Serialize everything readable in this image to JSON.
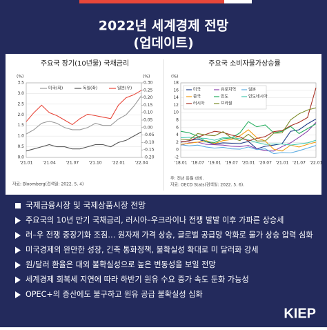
{
  "header": {
    "title": "2022년 세계경제 전망",
    "subtitle": "(업데이트)"
  },
  "chart_data": [
    {
      "type": "line",
      "title": "주요국 장기(10년물) 국채금리",
      "y_label": "(%)",
      "y2_label": "(%)",
      "categories": [
        "'21.01",
        null,
        null,
        "'21.04",
        null,
        null,
        "'21.07",
        null,
        null,
        "'21.10",
        null,
        null,
        "'22.01",
        null,
        null,
        "'22.04"
      ],
      "series": [
        {
          "name": "미국(좌)",
          "color": "#9a9a9a",
          "values": [
            1.1,
            1.3,
            1.6,
            1.7,
            1.6,
            1.4,
            1.3,
            1.3,
            1.4,
            1.6,
            1.5,
            1.5,
            1.8,
            2.0,
            2.4,
            2.9
          ]
        },
        {
          "name": "독일(좌)",
          "color": "#555555",
          "values": [
            0.3,
            0.4,
            0.5,
            0.6,
            0.5,
            0.5,
            0.4,
            0.4,
            0.5,
            0.6,
            0.6,
            0.5,
            0.7,
            0.8,
            1.0,
            1.2
          ]
        },
        {
          "name": "일본(우)",
          "color": "#e8473a",
          "axis": "y2",
          "values": [
            0.04,
            0.1,
            0.15,
            0.1,
            0.08,
            0.05,
            0.02,
            0.06,
            0.09,
            0.08,
            0.07,
            0.06,
            0.15,
            0.2,
            0.22,
            0.25
          ]
        }
      ],
      "ylim": [
        0,
        3.5
      ],
      "yticks": [
        {
          "value": 0,
          "label": "0.0"
        },
        0.5,
        {
          "value": 1,
          "label": "1.0"
        },
        1.5,
        {
          "value": 2,
          "label": "2.0"
        },
        2.5,
        {
          "value": 3,
          "label": "3.0"
        },
        3.5
      ],
      "y2lim": [
        -0.2,
        0.3
      ],
      "y2ticks": [
        {
          "value": -0.2,
          "label": "-0.20"
        },
        -0.15,
        {
          "value": -0.1,
          "label": "-0.10"
        },
        -0.05,
        {
          "value": 0,
          "label": "0.00"
        },
        0.05,
        {
          "value": 0.1,
          "label": "0.10"
        },
        0.15,
        {
          "value": 0.2,
          "label": "0.20"
        },
        0.25,
        {
          "value": 0.3,
          "label": "0.30"
        }
      ],
      "grid": true,
      "legend": "top",
      "notes": [
        "자료: Bloomberg(검색일: 2022. 5. 4)"
      ]
    },
    {
      "type": "line",
      "title": "주요국 소비자물가상승률",
      "y_label": "(%)",
      "categories": [
        "'18.01",
        null,
        "'18.07",
        null,
        "'19.01",
        null,
        "'19.07",
        null,
        "'20.01",
        null,
        "'20.07",
        null,
        "'21.01",
        null,
        "'21.07",
        null,
        "'22.01"
      ],
      "series": [
        {
          "name": "미국",
          "color": "#1f3c88",
          "values": [
            2.1,
            2.5,
            2.9,
            2.2,
            1.6,
            1.9,
            1.8,
            1.7,
            2.3,
            0.3,
            1.0,
            1.3,
            1.7,
            5.0,
            5.4,
            7.0,
            8.3
          ]
        },
        {
          "name": "유로지역",
          "color": "#8e44ad",
          "values": [
            1.3,
            1.9,
            2.1,
            1.5,
            1.4,
            1.3,
            1.0,
            0.9,
            1.2,
            0.3,
            -0.2,
            -0.3,
            0.9,
            1.9,
            3.4,
            5.0,
            7.4
          ]
        },
        {
          "name": "일본",
          "color": "#5dade2",
          "values": [
            1.4,
            1.1,
            1.3,
            0.8,
            0.5,
            0.7,
            0.3,
            0.2,
            0.8,
            0.1,
            0.3,
            -1.0,
            -0.7,
            -0.8,
            -0.2,
            0.5,
            1.2
          ]
        },
        {
          "name": "중국",
          "color": "#f39c12",
          "values": [
            1.5,
            1.8,
            2.1,
            2.5,
            1.7,
            2.5,
            2.8,
            3.8,
            5.4,
            3.3,
            2.4,
            0.2,
            -0.3,
            1.3,
            0.8,
            1.5,
            2.1
          ]
        },
        {
          "name": "인도",
          "color": "#27ae60",
          "values": [
            5.0,
            4.6,
            3.7,
            2.2,
            2.0,
            3.0,
            3.2,
            4.6,
            7.6,
            6.2,
            6.7,
            4.6,
            5.0,
            6.3,
            4.4,
            5.7,
            7.0
          ]
        },
        {
          "name": "인도네시아",
          "color": "#48c9b0",
          "values": [
            3.3,
            3.4,
            3.2,
            3.1,
            2.6,
            3.3,
            3.3,
            3.0,
            2.7,
            2.0,
            1.5,
            1.6,
            1.6,
            1.3,
            1.6,
            1.9,
            2.6
          ]
        },
        {
          "name": "러시아",
          "color": "#a93226",
          "values": [
            2.2,
            2.4,
            3.4,
            4.2,
            5.0,
            4.7,
            4.0,
            3.5,
            2.4,
            3.1,
            3.6,
            4.9,
            5.2,
            6.5,
            7.4,
            8.7,
            16.7
          ]
        },
        {
          "name": "브라질",
          "color": "#7d8c2a",
          "values": [
            2.9,
            2.7,
            4.4,
            4.0,
            3.8,
            4.9,
            3.2,
            2.5,
            4.2,
            2.4,
            2.4,
            4.5,
            4.6,
            8.1,
            9.7,
            10.7,
            11.3
          ]
        }
      ],
      "ylim": [
        -2,
        18
      ],
      "yticks": [
        -2,
        0,
        2,
        4,
        6,
        8,
        10,
        12,
        14,
        16,
        18
      ],
      "grid": true,
      "legend": "top-left",
      "notes": [
        "주: 전년 동월 대비.",
        "자료: OECD Stats(검색일: 2022. 5. 6)."
      ]
    }
  ],
  "bullets": [
    "국제금융시장 및 국제상품시장 전망",
    "주요국의 10년 만기 국채금리, 러시아–우크라이나 전쟁 발발 이후 가파른 상승세",
    "러–우 전쟁 중장기화 조짐… 원자재 가격 상승, 글로벌 공급망 악화로 물가 상승 압력 심화",
    "미국경제의 완만한 성장, 긴축 통화정책, 불확실성 확대로 미 달러화 강세",
    "원/달러 환율은 대외 불확실성으로 높은 변동성을 보일 전망",
    "세계경제 회복세 지연에 따라 하반기 원유 수요 증가 속도 둔화 가능성",
    "OPEC+의 증산에도 불구하고 원유 공급 불확실성 심화"
  ],
  "logo": "KIEP"
}
